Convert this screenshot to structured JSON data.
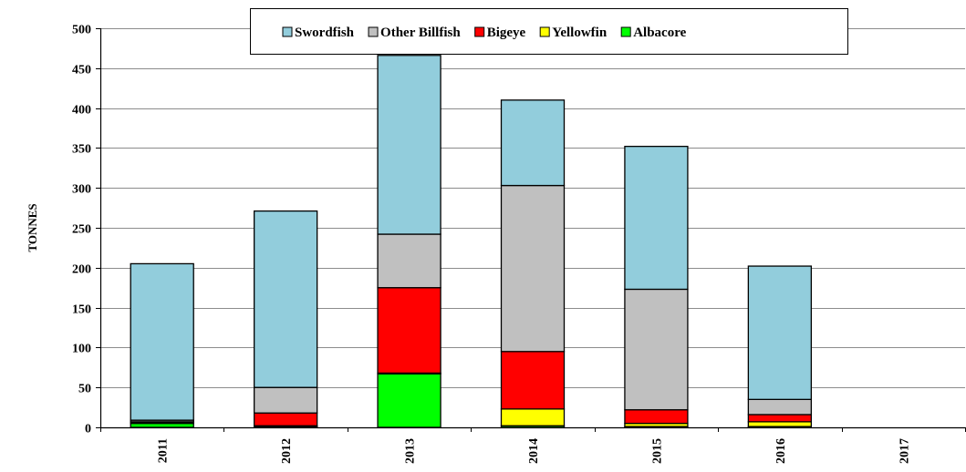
{
  "chart_data": {
    "type": "bar",
    "stacked": true,
    "ylabel": "TONNES",
    "xlabel": "",
    "categories": [
      "2011",
      "2012",
      "2013",
      "2014",
      "2015",
      "2016",
      "2017"
    ],
    "ylim": [
      0,
      500
    ],
    "yticks": [
      0,
      50,
      100,
      150,
      200,
      250,
      300,
      350,
      400,
      450,
      500
    ],
    "grid": true,
    "legend_position": "top",
    "series": [
      {
        "name": "Albacore",
        "color": "#00ff00",
        "values": [
          5,
          1,
          67,
          2,
          1,
          1,
          0
        ]
      },
      {
        "name": "Yellowfin",
        "color": "#ffff00",
        "values": [
          1,
          1,
          1,
          21,
          4,
          6,
          0
        ]
      },
      {
        "name": "Bigeye",
        "color": "#ff0000",
        "values": [
          1,
          16,
          107,
          72,
          17,
          9,
          0
        ]
      },
      {
        "name": "Other Billfish",
        "color": "#c0c0c0",
        "values": [
          2,
          32,
          67,
          208,
          151,
          19,
          0
        ]
      },
      {
        "name": "Swordfish",
        "color": "#92cddc",
        "values": [
          196,
          221,
          224,
          107,
          179,
          167,
          0
        ]
      }
    ],
    "legend_order": [
      "Swordfish",
      "Other Billfish",
      "Bigeye",
      "Yellowfin",
      "Albacore"
    ]
  }
}
